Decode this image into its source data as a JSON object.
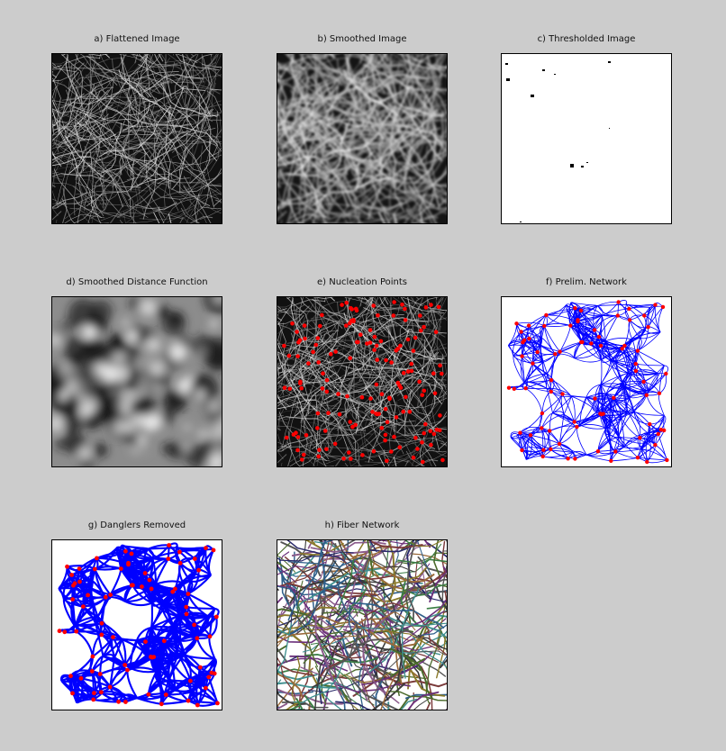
{
  "window": {
    "background": "#cccccc"
  },
  "panels": [
    {
      "title": "a) Flattened Image"
    },
    {
      "title": "b) Smoothed Image"
    },
    {
      "title": "c) Thresholded Image"
    },
    {
      "title": "d) Smoothed Distance Function"
    },
    {
      "title": "e) Nucleation Points"
    },
    {
      "title": "f) Prelim. Network"
    },
    {
      "title": "g) Danglers Removed"
    },
    {
      "title": "h) Fiber Network"
    }
  ],
  "colors": {
    "network_line": "#0000ff",
    "nucleation_point": "#ff0000",
    "image_dark": "#111111",
    "image_light": "#e6e6e6"
  }
}
